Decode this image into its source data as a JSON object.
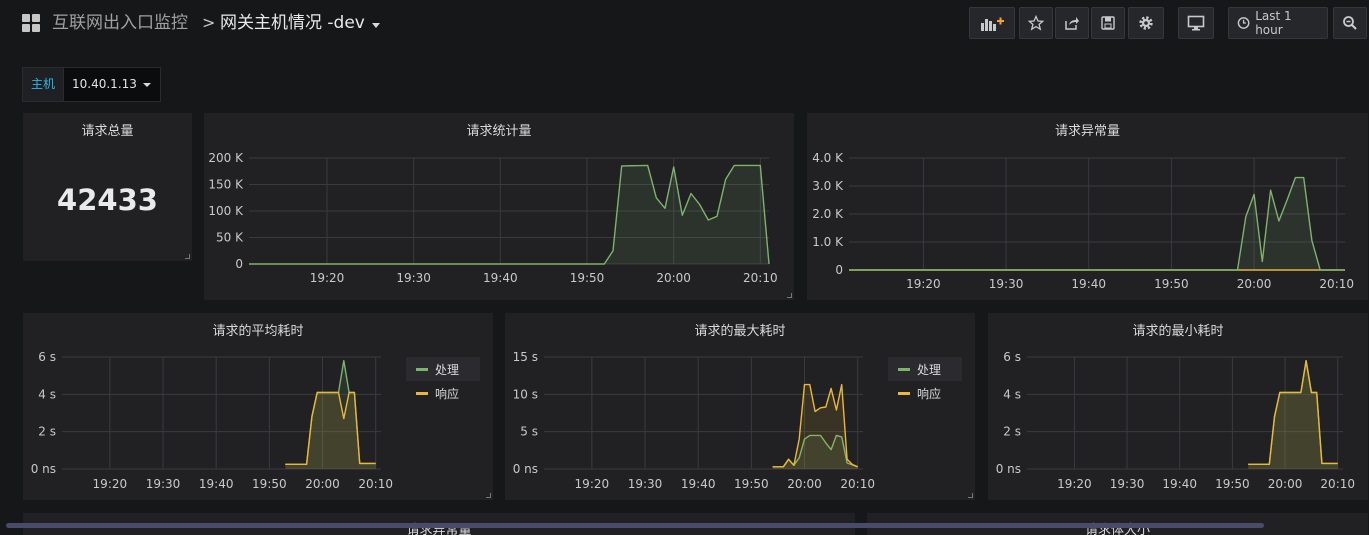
{
  "colors": {
    "green": "#7eb26d",
    "yellow": "#eab839",
    "grid": "#3a3b3e",
    "axis_text": "#c8c9ca"
  },
  "header": {
    "folder": "互联网出入口监控",
    "separator": ">",
    "title": "网关主机情况 -dev",
    "time_range": "Last 1 hour",
    "icons": [
      "add-panel-icon",
      "star-icon",
      "share-icon",
      "save-icon",
      "settings-icon",
      "tv-mode-icon",
      "clock-icon",
      "zoom-out-icon"
    ]
  },
  "variables": [
    {
      "label": "主机",
      "value": "10.40.1.13"
    }
  ],
  "panels": {
    "total": {
      "title": "请求总量",
      "value": "42433"
    },
    "count": {
      "title": "请求统计量"
    },
    "errors": {
      "title": "请求异常量"
    },
    "avg": {
      "title": "请求的平均耗时",
      "legend": [
        "处理",
        "响应"
      ]
    },
    "max": {
      "title": "请求的最大耗时",
      "legend": [
        "处理",
        "响应"
      ]
    },
    "min": {
      "title": "请求的最小耗时"
    },
    "bottom_left": {
      "title": "请求异常量"
    },
    "bottom_right": {
      "title": "请求体大小"
    }
  },
  "chart_data": [
    {
      "id": "count",
      "type": "area",
      "title": "请求统计量",
      "ylim": [
        0,
        200000
      ],
      "yticks": [
        0,
        50000,
        100000,
        150000,
        200000
      ],
      "ytick_labels": [
        "0",
        "50 K",
        "100 K",
        "150 K",
        "200 K"
      ],
      "xlim": [
        "19:11",
        "20:11"
      ],
      "xticks": [
        "19:20",
        "19:30",
        "19:40",
        "19:50",
        "20:00",
        "20:10"
      ],
      "series": [
        {
          "color": "#7eb26d",
          "points": [
            [
              "19:11",
              0
            ],
            [
              "19:52",
              0
            ],
            [
              "19:53",
              25000
            ],
            [
              "19:54",
              185000
            ],
            [
              "19:57",
              186000
            ],
            [
              "19:58",
              125000
            ],
            [
              "19:59",
              105000
            ],
            [
              "20:00",
              183000
            ],
            [
              "20:01",
              92000
            ],
            [
              "20:02",
              133000
            ],
            [
              "20:03",
              112000
            ],
            [
              "20:04",
              83000
            ],
            [
              "20:05",
              90000
            ],
            [
              "20:06",
              160000
            ],
            [
              "20:07",
              186000
            ],
            [
              "20:10",
              186000
            ],
            [
              "20:11",
              0
            ]
          ]
        }
      ]
    },
    {
      "id": "errors",
      "type": "area",
      "title": "请求异常量",
      "ylim": [
        0,
        4000
      ],
      "yticks": [
        0,
        1000,
        2000,
        3000,
        4000
      ],
      "ytick_labels": [
        "0",
        "1.0 K",
        "2.0 K",
        "3.0 K",
        "4.0 K"
      ],
      "xlim": [
        "19:11",
        "20:11"
      ],
      "xticks": [
        "19:20",
        "19:30",
        "19:40",
        "19:50",
        "20:00",
        "20:10"
      ],
      "series": [
        {
          "color": "#eab839",
          "points": [
            [
              "19:11",
              0
            ],
            [
              "20:11",
              0
            ]
          ]
        },
        {
          "color": "#7eb26d",
          "points": [
            [
              "19:11",
              0
            ],
            [
              "19:58",
              0
            ],
            [
              "19:59",
              1900
            ],
            [
              "20:00",
              2700
            ],
            [
              "20:01",
              300
            ],
            [
              "20:02",
              2850
            ],
            [
              "20:03",
              1750
            ],
            [
              "20:04",
              2500
            ],
            [
              "20:05",
              3300
            ],
            [
              "20:06",
              3300
            ],
            [
              "20:07",
              1050
            ],
            [
              "20:08",
              0
            ],
            [
              "20:11",
              0
            ]
          ]
        }
      ]
    },
    {
      "id": "avg",
      "type": "area",
      "title": "请求的平均耗时",
      "ylim": [
        0,
        6
      ],
      "yticks": [
        0,
        2,
        4,
        6
      ],
      "ytick_labels": [
        "0 ns",
        "2 s",
        "4 s",
        "6 s"
      ],
      "xlim": [
        "19:11",
        "20:11"
      ],
      "xticks": [
        "19:20",
        "19:30",
        "19:40",
        "19:50",
        "20:00",
        "20:10"
      ],
      "series": [
        {
          "name": "处理",
          "color": "#7eb26d",
          "points": [
            [
              "19:53",
              0.25
            ],
            [
              "19:57",
              0.25
            ],
            [
              "19:58",
              2.8
            ],
            [
              "19:59",
              4.1
            ],
            [
              "20:03",
              4.1
            ],
            [
              "20:04",
              5.8
            ],
            [
              "20:05",
              4.1
            ],
            [
              "20:06",
              4.1
            ],
            [
              "20:07",
              0.3
            ],
            [
              "20:10",
              0.3
            ]
          ]
        },
        {
          "name": "响应",
          "color": "#eab839",
          "points": [
            [
              "19:53",
              0.25
            ],
            [
              "19:57",
              0.25
            ],
            [
              "19:58",
              2.8
            ],
            [
              "19:59",
              4.1
            ],
            [
              "20:03",
              4.1
            ],
            [
              "20:04",
              2.7
            ],
            [
              "20:05",
              4.1
            ],
            [
              "20:06",
              4.1
            ],
            [
              "20:07",
              0.3
            ],
            [
              "20:10",
              0.3
            ]
          ]
        }
      ]
    },
    {
      "id": "max",
      "type": "area",
      "title": "请求的最大耗时",
      "ylim": [
        0,
        15
      ],
      "yticks": [
        0,
        5,
        10,
        15
      ],
      "ytick_labels": [
        "0 ns",
        "5 s",
        "10 s",
        "15 s"
      ],
      "xlim": [
        "19:11",
        "20:11"
      ],
      "xticks": [
        "19:20",
        "19:30",
        "19:40",
        "19:50",
        "20:00",
        "20:10"
      ],
      "series": [
        {
          "name": "处理",
          "color": "#7eb26d",
          "points": [
            [
              "19:54",
              0.3
            ],
            [
              "19:56",
              0.3
            ],
            [
              "19:57",
              1.3
            ],
            [
              "19:58",
              0.5
            ],
            [
              "19:59",
              1.5
            ],
            [
              "20:00",
              4.0
            ],
            [
              "20:01",
              4.5
            ],
            [
              "20:03",
              4.5
            ],
            [
              "20:04",
              3.5
            ],
            [
              "20:05",
              2.6
            ],
            [
              "20:06",
              4.5
            ],
            [
              "20:07",
              4.3
            ],
            [
              "20:08",
              0.8
            ],
            [
              "20:10",
              0.3
            ]
          ]
        },
        {
          "name": "响应",
          "color": "#eab839",
          "points": [
            [
              "19:54",
              0.3
            ],
            [
              "19:56",
              0.3
            ],
            [
              "19:57",
              1.3
            ],
            [
              "19:58",
              0.5
            ],
            [
              "19:59",
              4.0
            ],
            [
              "20:00",
              11.3
            ],
            [
              "20:01",
              11.3
            ],
            [
              "20:02",
              7.7
            ],
            [
              "20:03",
              8.2
            ],
            [
              "20:04",
              8.3
            ],
            [
              "20:05",
              10.8
            ],
            [
              "20:06",
              7.9
            ],
            [
              "20:07",
              11.3
            ],
            [
              "20:08",
              1.3
            ],
            [
              "20:09",
              0.6
            ],
            [
              "20:10",
              0.3
            ]
          ]
        }
      ]
    },
    {
      "id": "min",
      "type": "area",
      "title": "请求的最小耗时",
      "ylim": [
        0,
        6
      ],
      "yticks": [
        0,
        2,
        4,
        6
      ],
      "ytick_labels": [
        "0 ns",
        "2 s",
        "4 s",
        "6 s"
      ],
      "xlim": [
        "19:11",
        "20:11"
      ],
      "xticks": [
        "19:20",
        "19:30",
        "19:40",
        "19:50",
        "20:00",
        "20:10"
      ],
      "series": [
        {
          "color": "#7eb26d",
          "points": [
            [
              "19:53",
              0.25
            ],
            [
              "19:57",
              0.25
            ],
            [
              "19:58",
              2.8
            ],
            [
              "19:59",
              4.1
            ],
            [
              "20:03",
              4.1
            ],
            [
              "20:04",
              5.8
            ],
            [
              "20:05",
              4.1
            ],
            [
              "20:06",
              4.1
            ],
            [
              "20:07",
              0.3
            ],
            [
              "20:10",
              0.3
            ]
          ]
        },
        {
          "color": "#eab839",
          "points": [
            [
              "19:53",
              0.25
            ],
            [
              "19:57",
              0.25
            ],
            [
              "19:58",
              2.8
            ],
            [
              "19:59",
              4.1
            ],
            [
              "20:03",
              4.1
            ],
            [
              "20:04",
              5.8
            ],
            [
              "20:05",
              4.1
            ],
            [
              "20:06",
              4.1
            ],
            [
              "20:07",
              0.3
            ],
            [
              "20:10",
              0.3
            ]
          ]
        }
      ]
    }
  ]
}
